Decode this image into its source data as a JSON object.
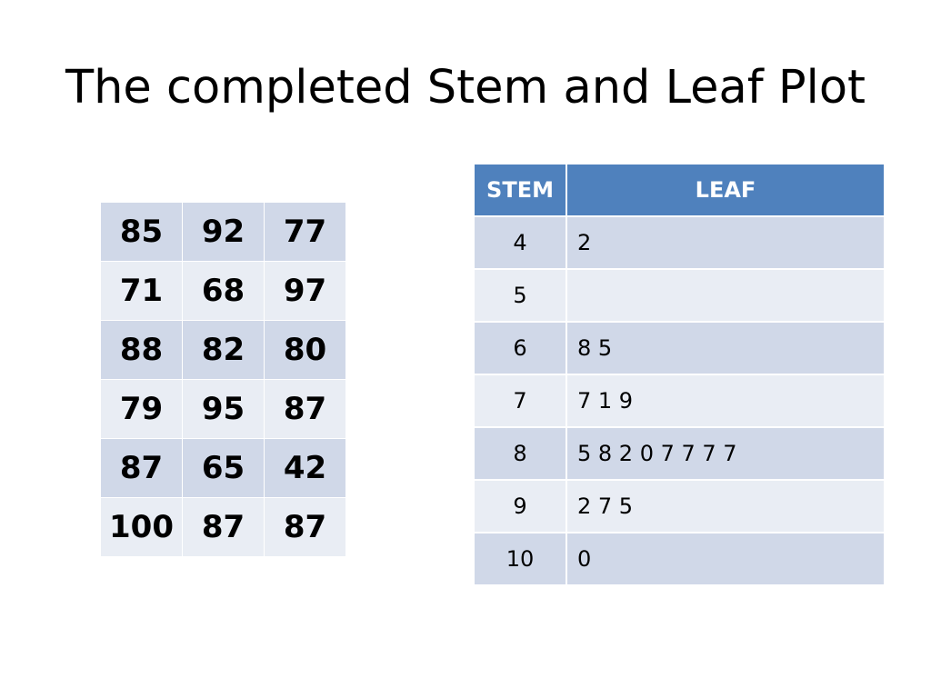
{
  "title": "The completed Stem and Leaf Plot",
  "data_grid": {
    "rows": [
      [
        "85",
        "92",
        "77"
      ],
      [
        "71",
        "68",
        "97"
      ],
      [
        "88",
        "82",
        "80"
      ],
      [
        "79",
        "95",
        "87"
      ],
      [
        "87",
        "65",
        "42"
      ],
      [
        "100",
        "87",
        "87"
      ]
    ]
  },
  "stem_leaf": {
    "headers": {
      "stem": "STEM",
      "leaf": "LEAF"
    },
    "rows": [
      {
        "stem": "4",
        "leaf": "2"
      },
      {
        "stem": "5",
        "leaf": ""
      },
      {
        "stem": "6",
        "leaf": "8 5"
      },
      {
        "stem": "7",
        "leaf": "7 1 9"
      },
      {
        "stem": "8",
        "leaf": "5 8 2 0 7 7 7 7"
      },
      {
        "stem": "9",
        "leaf": "2 7 5"
      },
      {
        "stem": "10",
        "leaf": "0"
      }
    ]
  },
  "colors": {
    "header_blue": "#4f81bd",
    "row_dark": "#d0d8e8",
    "row_light": "#e9edf4"
  }
}
